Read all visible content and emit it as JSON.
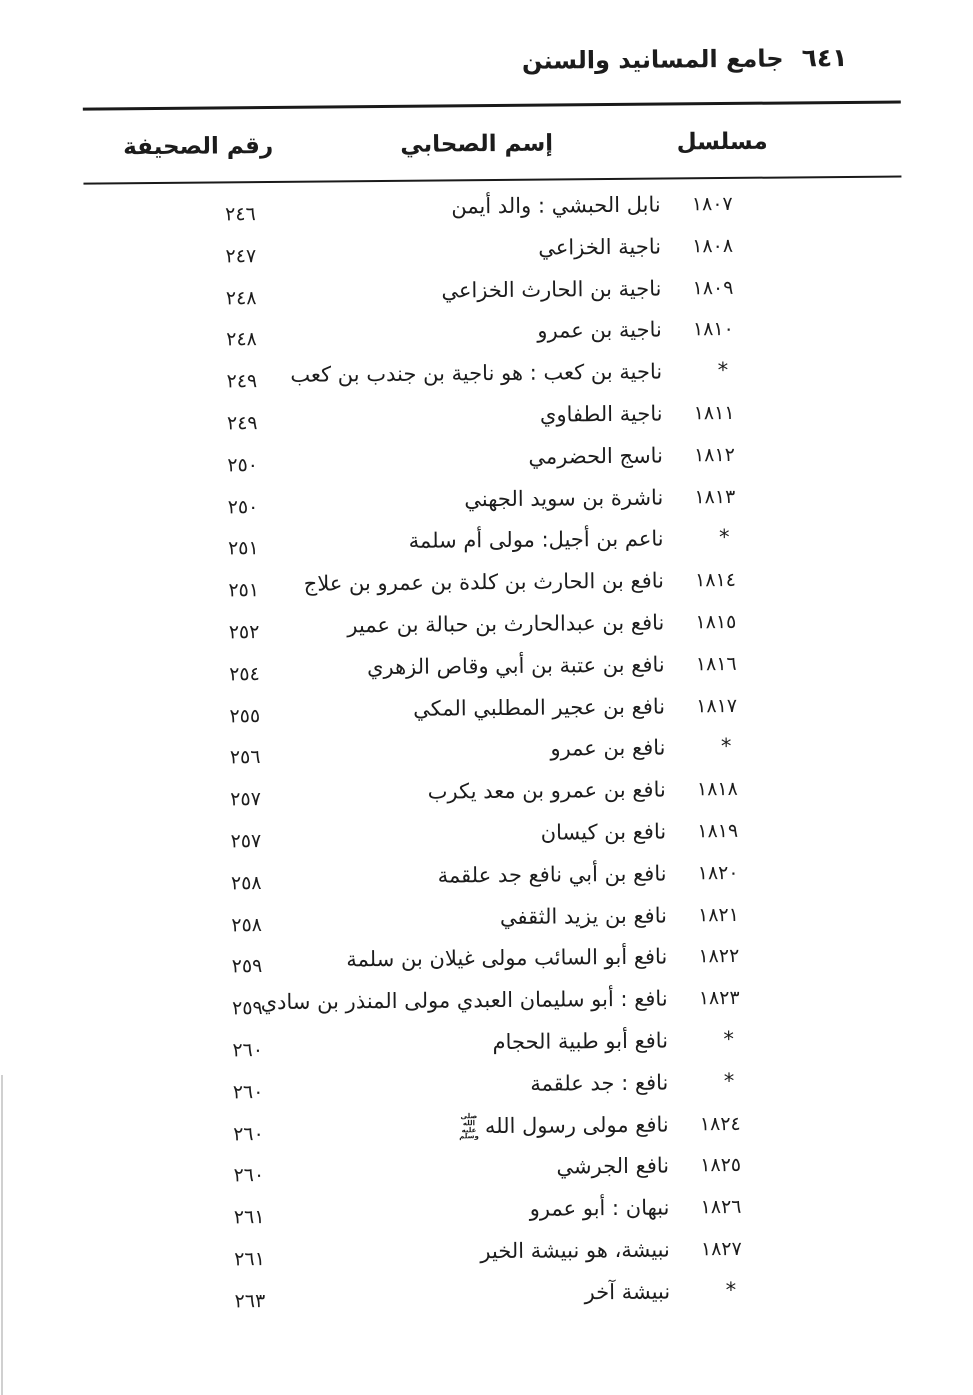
{
  "header": {
    "folio": "٦٤١",
    "book_title": "جامع المسانيد والسنن"
  },
  "table": {
    "headers": {
      "serial": "مسلسل",
      "name": "إسم الصحابي",
      "page": "رقم الصحيفة"
    },
    "rows": [
      {
        "serial": "١٨٠٧",
        "name": "نابل الحبشي : والد أيمن",
        "page": "٢٤٦"
      },
      {
        "serial": "١٨٠٨",
        "name": "ناجية الخزاعي",
        "page": "٢٤٧"
      },
      {
        "serial": "١٨٠٩",
        "name": "ناجية بن الحارث الخزاعي",
        "page": "٢٤٨"
      },
      {
        "serial": "١٨١٠",
        "name": "ناجية بن عمرو",
        "page": "٢٤٨"
      },
      {
        "serial": "*",
        "name": "ناجية بن كعب : هو ناجية بن جندب بن كعب",
        "page": "٢٤٩"
      },
      {
        "serial": "١٨١١",
        "name": "ناجية الطفاوي",
        "page": "٢٤٩"
      },
      {
        "serial": "١٨١٢",
        "name": "ناسج الحضرمي",
        "page": "٢٥٠"
      },
      {
        "serial": "١٨١٣",
        "name": "ناشرة بن سويد الجهني",
        "page": "٢٥٠"
      },
      {
        "serial": "*",
        "name": "ناعم بن أجيل: مولى أم سلمة",
        "page": "٢٥١"
      },
      {
        "serial": "١٨١٤",
        "name": "نافع بن الحارث بن كلدة بن عمرو بن علاج",
        "page": "٢٥١"
      },
      {
        "serial": "١٨١٥",
        "name": "نافع بن عبدالحارث بن حبالة بن عمير",
        "page": "٢٥٢"
      },
      {
        "serial": "١٨١٦",
        "name": "نافع بن عتبة بن أبي وقاص الزهري",
        "page": "٢٥٤"
      },
      {
        "serial": "١٨١٧",
        "name": "نافع بن عجير المطلبي المكي",
        "page": "٢٥٥"
      },
      {
        "serial": "*",
        "name": "نافع بن عمرو",
        "page": "٢٥٦"
      },
      {
        "serial": "١٨١٨",
        "name": "نافع بن عمرو بن معد يكرب",
        "page": "٢٥٧"
      },
      {
        "serial": "١٨١٩",
        "name": "نافع بن كيسان",
        "page": "٢٥٧"
      },
      {
        "serial": "١٨٢٠",
        "name": "نافع بن أبي نافع جد علقمة",
        "page": "٢٥٨"
      },
      {
        "serial": "١٨٢١",
        "name": "نافع بن يزيد الثقفي",
        "page": "٢٥٨"
      },
      {
        "serial": "١٨٢٢",
        "name": "نافع أبو السائب مولى غيلان بن سلمة",
        "page": "٢٥٩"
      },
      {
        "serial": "١٨٢٣",
        "name": "نافع : أبو سليمان العبدي مولى المنذر بن سادي",
        "page": "٢٥٩"
      },
      {
        "serial": "*",
        "name": "نافع أبو طبية الحجام",
        "page": "٢٦٠"
      },
      {
        "serial": "*",
        "name": "نافع : جد علقمة",
        "page": "٢٦٠"
      },
      {
        "serial": "١٨٢٤",
        "name": "نافع مولى رسول الله",
        "honorific": "صلى الله عليه وسلم",
        "page": "٢٦٠"
      },
      {
        "serial": "١٨٢٥",
        "name": "نافع الجرشي",
        "page": "٢٦٠"
      },
      {
        "serial": "١٨٢٦",
        "name": "نبهان : أبو عمرو",
        "page": "٢٦١"
      },
      {
        "serial": "١٨٢٧",
        "name": "نبيشة، هو نبيشة الخير",
        "page": "٢٦١"
      },
      {
        "serial": "*",
        "name": "نبيشة آخر",
        "page": "٢٦٣"
      }
    ]
  },
  "colors": {
    "ink": "#1c1c1c",
    "paper": "#ffffff"
  }
}
